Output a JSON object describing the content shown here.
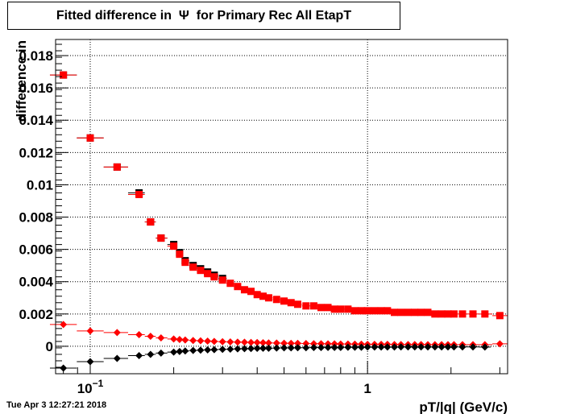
{
  "chart_data": {
    "type": "scatter",
    "title": "Fitted difference in  Ψ  for Primary Rec All EtapT",
    "xlabel": "pT/|q| (GeV/c)",
    "ylabel": "difference in",
    "xscale": "log",
    "xlim": [
      0.075,
      3.2
    ],
    "ylim": [
      -0.0017,
      0.019
    ],
    "grid": true,
    "y_ticks": [
      {
        "value": 0,
        "label": "0"
      },
      {
        "value": 0.002,
        "label": "0.002"
      },
      {
        "value": 0.004,
        "label": "0.004"
      },
      {
        "value": 0.006,
        "label": "0.006"
      },
      {
        "value": 0.008,
        "label": "0.008"
      },
      {
        "value": 0.01,
        "label": "0.01"
      },
      {
        "value": 0.012,
        "label": "0.012"
      },
      {
        "value": 0.014,
        "label": "0.014"
      },
      {
        "value": 0.016,
        "label": "0.016"
      },
      {
        "value": 0.018,
        "label": "0.018"
      }
    ],
    "x_ticks": [
      {
        "value": 0.1,
        "label": "10",
        "sup": "−1"
      },
      {
        "value": 1,
        "label": "1",
        "sup": ""
      }
    ],
    "series": [
      {
        "marker": "square",
        "color": "#000000",
        "x": [
          0.08,
          0.1,
          0.125,
          0.15,
          0.165,
          0.18,
          0.2,
          0.21,
          0.22,
          0.235,
          0.25,
          0.265,
          0.28,
          0.3
        ],
        "y": [
          0.0168,
          0.0129,
          0.0111,
          0.0095,
          0.0077,
          0.0067,
          0.0063,
          0.0058,
          0.0053,
          0.005,
          0.0048,
          0.0046,
          0.0044,
          0.0042
        ]
      },
      {
        "marker": "square",
        "color": "#ff0000",
        "x": [
          0.08,
          0.1,
          0.125,
          0.15,
          0.165,
          0.18,
          0.2,
          0.21,
          0.22,
          0.235,
          0.25,
          0.265,
          0.28,
          0.3,
          0.32,
          0.34,
          0.36,
          0.38,
          0.4,
          0.42,
          0.44,
          0.47,
          0.5,
          0.53,
          0.56,
          0.6,
          0.64,
          0.68,
          0.72,
          0.76,
          0.8,
          0.85,
          0.9,
          0.95,
          1.0,
          1.06,
          1.12,
          1.18,
          1.25,
          1.32,
          1.4,
          1.48,
          1.56,
          1.65,
          1.75,
          1.85,
          1.95,
          2.05,
          2.2,
          2.4,
          2.65,
          3.0
        ],
        "y": [
          0.0168,
          0.0129,
          0.0111,
          0.0094,
          0.0077,
          0.0067,
          0.0062,
          0.0057,
          0.0052,
          0.0049,
          0.0047,
          0.0045,
          0.0043,
          0.0041,
          0.0039,
          0.0037,
          0.0035,
          0.0034,
          0.0032,
          0.0031,
          0.003,
          0.0029,
          0.0028,
          0.0027,
          0.0026,
          0.0025,
          0.0025,
          0.0024,
          0.0024,
          0.0023,
          0.0023,
          0.0023,
          0.0022,
          0.0022,
          0.0022,
          0.0022,
          0.0022,
          0.0022,
          0.0021,
          0.0021,
          0.0021,
          0.0021,
          0.0021,
          0.0021,
          0.002,
          0.002,
          0.002,
          0.002,
          0.002,
          0.002,
          0.002,
          0.0019
        ]
      },
      {
        "marker": "diamond",
        "color": "#ff0000",
        "x": [
          0.08,
          0.1,
          0.125,
          0.15,
          0.165,
          0.18,
          0.2,
          0.21,
          0.22,
          0.235,
          0.25,
          0.265,
          0.28,
          0.3,
          0.32,
          0.34,
          0.36,
          0.38,
          0.4,
          0.42,
          0.44,
          0.47,
          0.5,
          0.53,
          0.56,
          0.6,
          0.64,
          0.68,
          0.72,
          0.76,
          0.8,
          0.85,
          0.9,
          0.95,
          1.0,
          1.06,
          1.12,
          1.18,
          1.25,
          1.32,
          1.4,
          1.48,
          1.56,
          1.65,
          1.75,
          1.85,
          1.95,
          2.05,
          2.2,
          2.4,
          2.65,
          3.0
        ],
        "y": [
          0.00135,
          0.00095,
          0.00085,
          0.00072,
          0.00062,
          0.00052,
          0.00045,
          0.00042,
          0.00039,
          0.00036,
          0.00034,
          0.00032,
          0.0003,
          0.00028,
          0.00027,
          0.00026,
          0.00025,
          0.00024,
          0.00023,
          0.00022,
          0.00021,
          0.0002,
          0.00019,
          0.00018,
          0.00018,
          0.00017,
          0.00016,
          0.00016,
          0.00015,
          0.00015,
          0.00014,
          0.00014,
          0.00013,
          0.00013,
          0.00012,
          0.00012,
          0.00012,
          0.00012,
          0.00011,
          0.00011,
          0.00011,
          0.00011,
          0.00011,
          0.0001,
          0.0001,
          0.0001,
          0.0001,
          0.0001,
          0.0001,
          0.0001,
          0.0001,
          0.00015
        ]
      },
      {
        "marker": "diamond",
        "color": "#000000",
        "x": [
          0.08,
          0.1,
          0.125,
          0.15,
          0.165,
          0.18,
          0.2,
          0.21,
          0.22,
          0.235,
          0.25,
          0.265,
          0.28,
          0.3,
          0.32,
          0.34,
          0.36,
          0.38,
          0.4,
          0.42,
          0.44,
          0.47,
          0.5,
          0.53,
          0.56,
          0.6,
          0.64,
          0.68,
          0.72,
          0.76,
          0.8,
          0.85,
          0.9,
          0.95,
          1.0,
          1.06,
          1.12,
          1.18,
          1.25,
          1.32,
          1.4,
          1.48,
          1.56,
          1.65,
          1.75,
          1.85,
          1.95,
          2.05,
          2.2,
          2.4,
          2.65
        ],
        "y": [
          -0.00135,
          -0.00095,
          -0.00075,
          -0.00058,
          -0.0005,
          -0.00042,
          -0.00036,
          -0.00032,
          -0.00029,
          -0.00026,
          -0.00024,
          -0.00022,
          -0.00021,
          -0.00019,
          -0.00018,
          -0.00016,
          -0.00015,
          -0.00014,
          -0.00013,
          -0.00012,
          -0.00012,
          -0.00011,
          -0.0001,
          -0.0001,
          -9e-05,
          -9e-05,
          -8e-05,
          -8e-05,
          -7e-05,
          -7e-05,
          -7e-05,
          -6e-05,
          -6e-05,
          -6e-05,
          -5e-05,
          -5e-05,
          -5e-05,
          -5e-05,
          -5e-05,
          -4e-05,
          -4e-05,
          -4e-05,
          -4e-05,
          -4e-05,
          -4e-05,
          -4e-05,
          -4e-05,
          -4e-05,
          -4e-05,
          -4e-05,
          -5e-05
        ]
      }
    ]
  },
  "timestamp": "Tue Apr  3 12:27:21 2018"
}
